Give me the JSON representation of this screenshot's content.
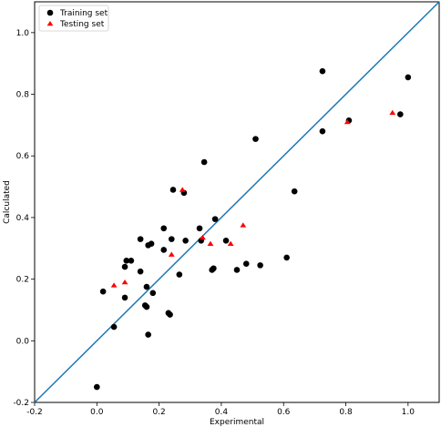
{
  "chart_data": {
    "type": "scatter",
    "title": "",
    "xlabel": "Experimental",
    "ylabel": "Calculated",
    "xlim": [
      -0.2,
      1.1
    ],
    "ylim": [
      -0.2,
      1.1
    ],
    "xticks": [
      -0.2,
      0.0,
      0.2,
      0.4,
      0.6,
      0.8,
      1.0
    ],
    "yticks": [
      -0.2,
      0.0,
      0.2,
      0.4,
      0.6,
      0.8,
      1.0
    ],
    "grid": false,
    "legend_position": "upper-left",
    "reference_line": {
      "x": [
        -0.2,
        1.1
      ],
      "y": [
        -0.2,
        1.1
      ],
      "color": "#1f77b4"
    },
    "series": [
      {
        "name": "Training set",
        "marker": "circle",
        "color": "#000000",
        "points": [
          [
            0.0,
            -0.15
          ],
          [
            0.02,
            0.16
          ],
          [
            0.055,
            0.045
          ],
          [
            0.09,
            0.24
          ],
          [
            0.09,
            0.14
          ],
          [
            0.095,
            0.26
          ],
          [
            0.11,
            0.26
          ],
          [
            0.14,
            0.33
          ],
          [
            0.14,
            0.225
          ],
          [
            0.155,
            0.115
          ],
          [
            0.16,
            0.11
          ],
          [
            0.16,
            0.175
          ],
          [
            0.165,
            0.31
          ],
          [
            0.165,
            0.02
          ],
          [
            0.175,
            0.315
          ],
          [
            0.18,
            0.155
          ],
          [
            0.215,
            0.365
          ],
          [
            0.215,
            0.295
          ],
          [
            0.23,
            0.09
          ],
          [
            0.235,
            0.085
          ],
          [
            0.24,
            0.33
          ],
          [
            0.245,
            0.49
          ],
          [
            0.265,
            0.215
          ],
          [
            0.28,
            0.48
          ],
          [
            0.285,
            0.325
          ],
          [
            0.33,
            0.365
          ],
          [
            0.335,
            0.325
          ],
          [
            0.345,
            0.58
          ],
          [
            0.37,
            0.23
          ],
          [
            0.375,
            0.235
          ],
          [
            0.38,
            0.395
          ],
          [
            0.415,
            0.325
          ],
          [
            0.45,
            0.23
          ],
          [
            0.48,
            0.25
          ],
          [
            0.51,
            0.655
          ],
          [
            0.525,
            0.245
          ],
          [
            0.61,
            0.27
          ],
          [
            0.635,
            0.485
          ],
          [
            0.725,
            0.875
          ],
          [
            0.725,
            0.68
          ],
          [
            0.81,
            0.715
          ],
          [
            0.975,
            0.735
          ],
          [
            1.0,
            0.855
          ]
        ]
      },
      {
        "name": "Testing set",
        "marker": "triangle",
        "color": "#ff0000",
        "points": [
          [
            0.055,
            0.18
          ],
          [
            0.09,
            0.19
          ],
          [
            0.24,
            0.28
          ],
          [
            0.275,
            0.49
          ],
          [
            0.34,
            0.335
          ],
          [
            0.365,
            0.315
          ],
          [
            0.43,
            0.315
          ],
          [
            0.47,
            0.375
          ],
          [
            0.805,
            0.71
          ],
          [
            0.95,
            0.74
          ]
        ]
      }
    ]
  }
}
